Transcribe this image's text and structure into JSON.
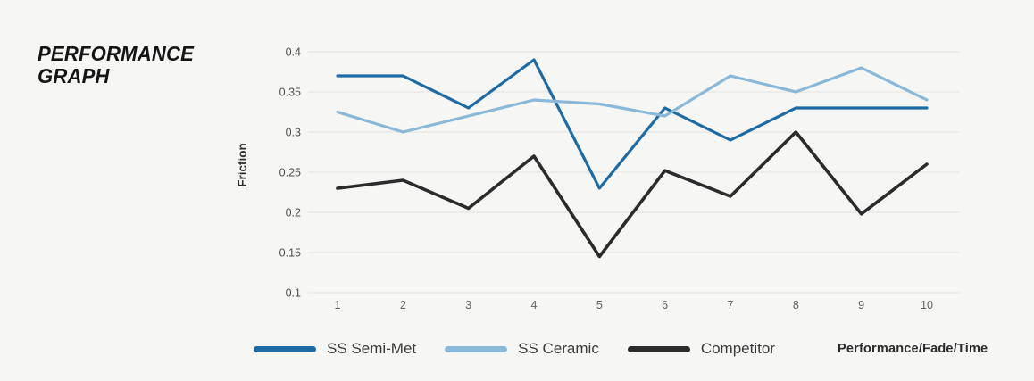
{
  "header": {
    "title_line1": "PERFORMANCE",
    "title_line2": "GRAPH"
  },
  "chart_data": {
    "type": "line",
    "title": "PERFORMANCE GRAPH",
    "ylabel": "Friction",
    "xlabel": "Performance/Fade/Time",
    "x": [
      1,
      2,
      3,
      4,
      5,
      6,
      7,
      8,
      9,
      10
    ],
    "ylim": [
      0.1,
      0.4
    ],
    "yticks": [
      0.4,
      0.35,
      0.3,
      0.25,
      0.2,
      0.15,
      0.1
    ],
    "grid": "horizontal",
    "legend_position": "bottom",
    "background": "#f6f6f5",
    "gridline_color": "#e2e2e0",
    "series": [
      {
        "name": "SS Semi-Met",
        "color": "#1e6aa4",
        "values": [
          0.37,
          0.37,
          0.33,
          0.39,
          0.23,
          0.33,
          0.29,
          0.33,
          0.33,
          0.33
        ]
      },
      {
        "name": "SS Ceramic",
        "color": "#8ab8d8",
        "values": [
          0.325,
          0.3,
          0.32,
          0.34,
          0.335,
          0.32,
          0.37,
          0.35,
          0.38,
          0.34
        ]
      },
      {
        "name": "Competitor",
        "color": "#2b2b2b",
        "values": [
          0.23,
          0.24,
          0.205,
          0.27,
          0.145,
          0.252,
          0.22,
          0.3,
          0.198,
          0.26
        ]
      }
    ]
  }
}
